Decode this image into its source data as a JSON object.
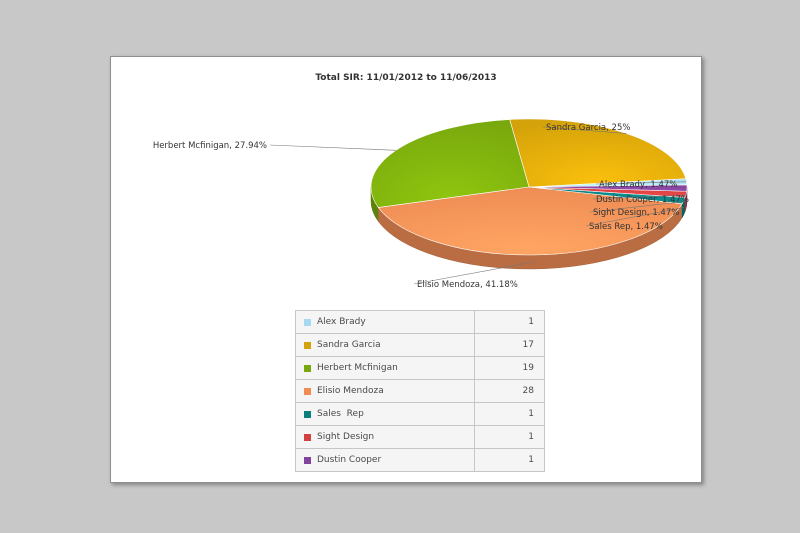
{
  "chart_data": {
    "type": "pie",
    "title": "Total SIR: 11/01/2012 to 11/06/2013",
    "slices": [
      {
        "name": "Alex Brady",
        "value": 1,
        "percent_label": "Alex Brady, 1.47%",
        "color": "#a8d8f0"
      },
      {
        "name": "Sandra Garcia",
        "value": 17,
        "percent_label": "Sandra Garcia, 25%",
        "color": "#d4a20a"
      },
      {
        "name": "Herbert Mcfinigan",
        "value": 19,
        "percent_label": "Herbert Mcfinigan, 27.94%",
        "color": "#79a80d"
      },
      {
        "name": "Elisio Mendoza",
        "value": 28,
        "percent_label": "Elisio Mendoza, 41.18%",
        "color": "#ee8c54"
      },
      {
        "name": "Sales  Rep",
        "value": 1,
        "percent_label": "Sales  Rep, 1.47%",
        "color": "#0a7f80"
      },
      {
        "name": "Sight Design",
        "value": 1,
        "percent_label": "Sight Design, 1.47%",
        "color": "#d24040"
      },
      {
        "name": "Dustin Cooper",
        "value": 1,
        "percent_label": "Dustin Cooper, 1.47%",
        "color": "#82439a"
      }
    ],
    "legend_position": "bottom"
  }
}
